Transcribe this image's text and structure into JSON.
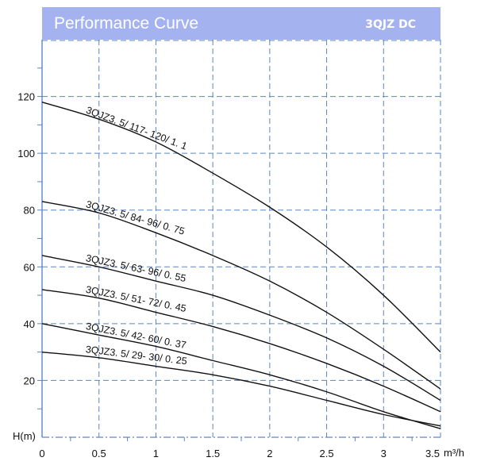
{
  "header": {
    "title": "Performance Curve",
    "model": "3QJZ DC",
    "bg_color": "#a4b3ef"
  },
  "grid_color": "#5a86c4",
  "curve_color": "#111111",
  "chart_data": {
    "type": "line",
    "title": "Performance Curve",
    "xlabel": "m³/h",
    "ylabel": "H(m)",
    "xlim": [
      0,
      3.5
    ],
    "ylim": [
      0,
      140
    ],
    "grid": true,
    "x_ticks": [
      "0",
      "0.5",
      "1",
      "1.5",
      "2",
      "2.5",
      "3",
      "3.5"
    ],
    "y_ticks": [
      "20",
      "40",
      "60",
      "80",
      "100",
      "120"
    ],
    "series": [
      {
        "name": "3QJZ3. 5/ 117- 120/ 1. 1",
        "x": [
          0,
          0.5,
          1,
          1.5,
          2,
          2.5,
          3,
          3.5
        ],
        "y": [
          118,
          112,
          104,
          93,
          81,
          67,
          50,
          30
        ]
      },
      {
        "name": "3QJZ3. 5/ 84- 96/ 0. 75",
        "x": [
          0,
          0.5,
          1,
          1.5,
          2,
          2.5,
          3,
          3.5
        ],
        "y": [
          83,
          79,
          72,
          64,
          55,
          44,
          31,
          17
        ]
      },
      {
        "name": "3QJZ3. 5/ 63- 96/ 0. 55",
        "x": [
          0,
          0.5,
          1,
          1.5,
          2,
          2.5,
          3,
          3.5
        ],
        "y": [
          64,
          60,
          55,
          50,
          43,
          35,
          25,
          13
        ]
      },
      {
        "name": "3QJZ3. 5/ 51- 72/ 0. 45",
        "x": [
          0,
          0.5,
          1,
          1.5,
          2,
          2.5,
          3,
          3.5
        ],
        "y": [
          52,
          49,
          44,
          39,
          33,
          26,
          18,
          9
        ]
      },
      {
        "name": "3QJZ3. 5/ 42- 60/ 0. 37",
        "x": [
          0,
          0.5,
          1,
          1.5,
          2,
          2.5,
          3,
          3.5
        ],
        "y": [
          40,
          36,
          32,
          27,
          22,
          16,
          9,
          3
        ]
      },
      {
        "name": "3QJZ3. 5/ 29- 30/ 0. 25",
        "x": [
          0,
          0.5,
          1,
          1.5,
          2,
          2.5,
          3,
          3.5
        ],
        "y": [
          30,
          28,
          25,
          22,
          18,
          13,
          8,
          4
        ]
      }
    ]
  }
}
